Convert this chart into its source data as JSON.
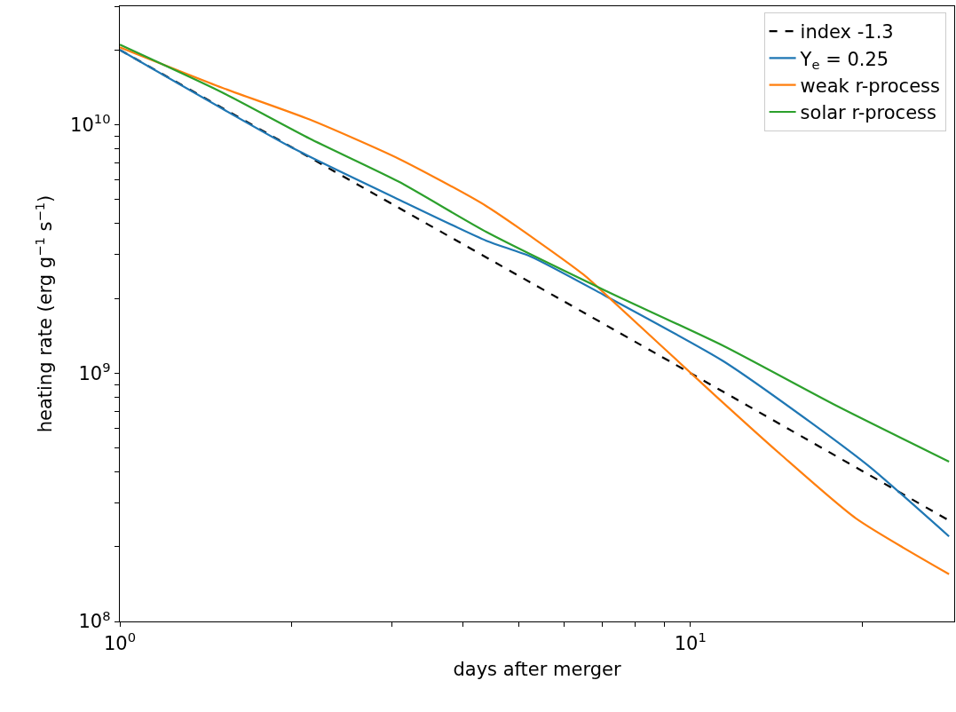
{
  "chart_data": {
    "type": "line",
    "xlabel": "days after merger",
    "ylabel": "heating rate (erg g$^{−1}$ s$^{−1}$)",
    "log": "xy",
    "grid": false,
    "legend": "top right",
    "xlim": [
      1,
      29
    ],
    "ylim": [
      100000000,
      30000000000
    ],
    "xticks": [
      {
        "value": 1,
        "label": "10$^{0}$"
      },
      {
        "value": 2,
        "label": null
      },
      {
        "value": 3,
        "label": null
      },
      {
        "value": 4,
        "label": null
      },
      {
        "value": 5,
        "label": null
      },
      {
        "value": 6,
        "label": null
      },
      {
        "value": 7,
        "label": null
      },
      {
        "value": 8,
        "label": null
      },
      {
        "value": 9,
        "label": null
      },
      {
        "value": 10,
        "label": "10$^{1}$"
      },
      {
        "value": 20,
        "label": null
      }
    ],
    "yticks": [
      {
        "value": 100000000,
        "label": "10$^{8}$"
      },
      {
        "value": 200000000,
        "label": null
      },
      {
        "value": 300000000,
        "label": null
      },
      {
        "value": 400000000,
        "label": null
      },
      {
        "value": 500000000,
        "label": null
      },
      {
        "value": 600000000,
        "label": null
      },
      {
        "value": 700000000,
        "label": null
      },
      {
        "value": 800000000,
        "label": null
      },
      {
        "value": 900000000,
        "label": null
      },
      {
        "value": 1000000000,
        "label": "10$^{9}$"
      },
      {
        "value": 2000000000,
        "label": null
      },
      {
        "value": 3000000000,
        "label": null
      },
      {
        "value": 4000000000,
        "label": null
      },
      {
        "value": 5000000000,
        "label": null
      },
      {
        "value": 6000000000,
        "label": null
      },
      {
        "value": 7000000000,
        "label": null
      },
      {
        "value": 8000000000,
        "label": null
      },
      {
        "value": 9000000000,
        "label": null
      },
      {
        "value": 10000000000,
        "label": "10$^{10}$"
      },
      {
        "value": 20000000000,
        "label": null
      },
      {
        "value": 30000000000,
        "label": null
      }
    ],
    "series": [
      {
        "name": "index -1.3",
        "color": "#000000",
        "line_style": "dashed",
        "x": [
          1,
          10,
          28.4
        ],
        "values": [
          20000000000,
          1000000000,
          255000000
        ]
      },
      {
        "name": "Y$_{e}$ = 0.25",
        "color": "#1f77b4",
        "line_style": "solid",
        "x": [
          1,
          2.02,
          3.08,
          4.39,
          5.26,
          7.06,
          11.4,
          16.3,
          20.6,
          28.4
        ],
        "values": [
          20000000000,
          8000000000,
          5000000000,
          3410000000,
          2940000000,
          2060000000,
          1120000000,
          630000000,
          420000000,
          220000000
        ]
      },
      {
        "name": "weak r-process",
        "color": "#ff7f0e",
        "line_style": "solid",
        "x": [
          1,
          1.51,
          2.15,
          3.08,
          4.39,
          6.5,
          7.31,
          11.1,
          14.4,
          19.5,
          28.4
        ],
        "values": [
          20500000000,
          14100000000,
          10500000000,
          7300000000,
          4700000000,
          2490000000,
          1950000000,
          805000000,
          470000000,
          260000000,
          155000000
        ]
      },
      {
        "name": "solar r-process",
        "color": "#2ca02c",
        "line_style": "solid",
        "x": [
          1,
          1.51,
          2.15,
          3.08,
          4.39,
          7.06,
          11.4,
          18.0,
          28.4
        ],
        "values": [
          21000000000,
          13500000000,
          8800000000,
          5900000000,
          3700000000,
          2160000000,
          1290000000,
          740000000,
          440000000
        ]
      }
    ]
  }
}
